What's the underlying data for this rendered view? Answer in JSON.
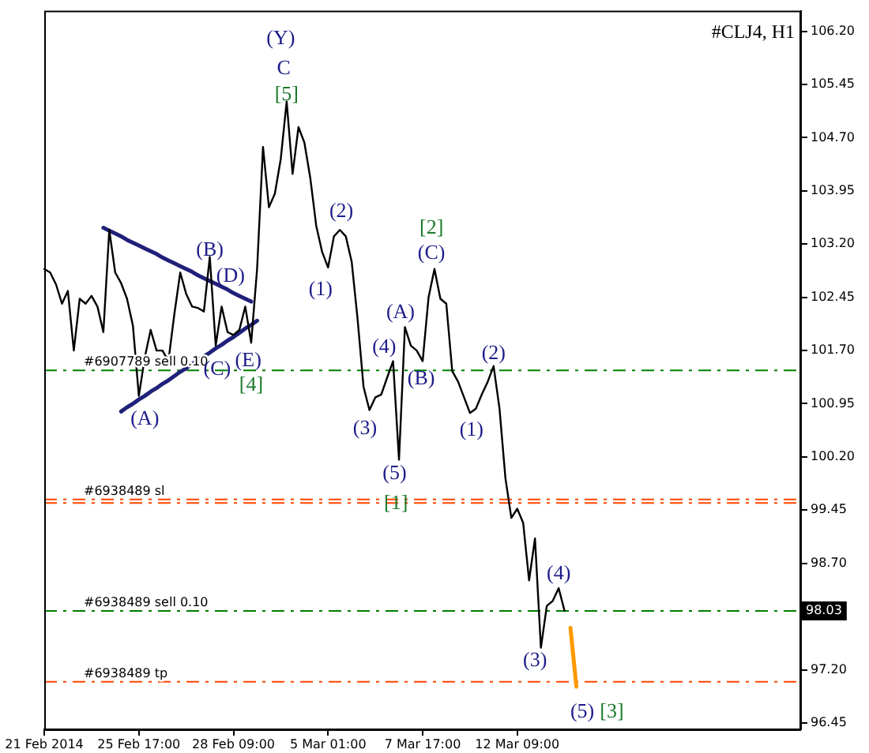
{
  "chart_data": {
    "type": "line",
    "title": "#CLJ4, H1",
    "categories": [
      "21 Feb 2014",
      null,
      null,
      null,
      null,
      null,
      null,
      null,
      null,
      null,
      null,
      null,
      null,
      null,
      null,
      null,
      "25 Feb 17:00",
      null,
      null,
      null,
      null,
      null,
      null,
      null,
      null,
      null,
      null,
      null,
      null,
      null,
      null,
      null,
      "28 Feb 09:00",
      null,
      null,
      null,
      null,
      null,
      null,
      null,
      null,
      null,
      null,
      null,
      null,
      null,
      null,
      null,
      "5 Mar 01:00",
      null,
      null,
      null,
      null,
      null,
      null,
      null,
      null,
      null,
      null,
      null,
      null,
      null,
      null,
      null,
      "7 Mar 17:00",
      null,
      null,
      null,
      null,
      null,
      null,
      null,
      null,
      null,
      null,
      null,
      null,
      null,
      null,
      null,
      "12 Mar 09:00",
      null,
      null,
      null,
      null,
      null,
      null,
      null,
      null,
      null,
      null,
      null,
      null,
      null,
      null,
      null,
      null,
      null,
      null,
      null,
      null,
      null,
      null,
      null,
      null,
      null,
      null,
      null,
      null,
      null,
      null,
      null,
      null,
      null,
      null,
      null,
      null,
      null,
      null,
      null,
      null,
      null,
      null,
      null,
      null,
      null,
      null,
      null,
      null
    ],
    "series": [
      {
        "color": "#000000",
        "values": [
          102.85,
          102.8,
          102.63,
          102.36,
          102.54,
          101.7,
          102.43,
          102.36,
          102.47,
          102.32,
          101.96,
          103.4,
          102.8,
          102.65,
          102.43,
          102.05,
          101.06,
          101.6,
          101.99,
          101.7,
          101.7,
          101.55,
          102.21,
          102.8,
          102.5,
          102.32,
          102.3,
          102.25,
          103.02,
          101.77,
          102.32,
          101.96,
          101.92,
          101.99,
          102.32,
          101.81,
          102.85,
          104.57,
          103.72,
          103.91,
          104.4,
          105.21,
          104.19,
          104.85,
          104.63,
          104.13,
          103.46,
          103.09,
          102.87,
          103.31,
          103.4,
          103.31,
          102.95,
          102.14,
          101.19,
          100.86,
          101.04,
          101.08,
          101.32,
          101.55,
          100.16,
          102.03,
          101.77,
          101.7,
          101.55,
          102.45,
          102.85,
          102.43,
          102.36,
          101.41,
          101.26,
          101.04,
          100.82,
          100.88,
          101.08,
          101.26,
          101.48,
          100.88,
          99.9,
          99.34,
          99.47,
          99.27,
          98.46,
          99.05,
          97.51,
          98.1,
          98.17,
          98.35,
          98.03,
          null,
          null,
          null,
          null,
          null,
          null,
          null,
          null,
          null,
          null,
          null,
          null,
          null,
          null,
          null,
          null,
          null,
          null,
          null,
          null,
          null,
          null,
          null,
          null,
          null,
          null,
          null,
          null,
          null,
          null,
          null,
          null,
          null,
          null,
          null,
          null,
          null,
          null,
          null,
          null
        ]
      },
      {
        "type": "line",
        "color": "#20207a",
        "values": [
          null,
          null,
          null,
          null,
          null,
          null,
          null,
          null,
          null,
          null,
          103.43,
          103.39,
          103.35,
          103.31,
          103.26,
          103.22,
          103.18,
          103.14,
          103.1,
          103.06,
          103.01,
          102.97,
          102.93,
          102.89,
          102.85,
          102.81,
          102.76,
          102.72,
          102.68,
          102.64,
          102.6,
          102.56,
          102.51,
          102.47,
          102.43,
          102.39,
          null,
          null,
          null,
          null,
          null,
          null,
          null,
          null,
          null,
          null,
          null,
          null,
          null,
          null,
          null,
          null,
          null,
          null,
          null,
          null,
          null,
          null,
          null,
          null,
          null,
          null,
          null,
          null,
          null,
          null,
          null,
          null,
          null,
          null,
          null,
          null,
          null,
          null,
          null,
          null,
          null,
          null,
          null,
          null,
          null,
          null,
          null,
          null,
          null,
          null,
          null,
          null,
          null,
          null,
          null,
          null,
          null,
          null,
          null,
          null,
          null,
          null,
          null,
          null,
          null,
          null,
          null,
          null,
          null,
          null,
          null,
          null,
          null,
          null,
          null,
          null,
          null,
          null,
          null,
          null,
          null,
          null,
          null,
          null,
          null,
          null,
          null,
          null,
          null,
          null,
          null,
          null,
          null
        ]
      },
      {
        "type": "line",
        "color": "#20207a",
        "values": [
          null,
          null,
          null,
          null,
          null,
          null,
          null,
          null,
          null,
          null,
          null,
          null,
          null,
          100.84,
          100.9,
          100.95,
          101.01,
          101.06,
          101.12,
          101.17,
          101.23,
          101.28,
          101.34,
          101.4,
          101.45,
          101.51,
          101.56,
          101.62,
          101.67,
          101.73,
          101.78,
          101.84,
          101.89,
          101.95,
          102.01,
          102.06,
          102.12,
          null,
          null,
          null,
          null,
          null,
          null,
          null,
          null,
          null,
          null,
          null,
          null,
          null,
          null,
          null,
          null,
          null,
          null,
          null,
          null,
          null,
          null,
          null,
          null,
          null,
          null,
          null,
          null,
          null,
          null,
          null,
          null,
          null,
          null,
          null,
          null,
          null,
          null,
          null,
          null,
          null,
          null,
          null,
          null,
          null,
          null,
          null,
          null,
          null,
          null,
          null,
          null,
          null,
          null,
          null,
          null,
          null,
          null,
          null,
          null,
          null,
          null,
          null,
          null,
          null,
          null,
          null,
          null,
          null,
          null,
          null,
          null,
          null,
          null,
          null,
          null,
          null,
          null,
          null,
          null,
          null,
          null,
          null,
          null,
          null,
          null,
          null,
          null,
          null,
          null,
          null,
          null
        ]
      },
      {
        "type": "line",
        "color": "#ff9900",
        "values": [
          null,
          null,
          null,
          null,
          null,
          null,
          null,
          null,
          null,
          null,
          null,
          null,
          null,
          null,
          null,
          null,
          null,
          null,
          null,
          null,
          null,
          null,
          null,
          null,
          null,
          null,
          null,
          null,
          null,
          null,
          null,
          null,
          null,
          null,
          null,
          null,
          null,
          null,
          null,
          null,
          null,
          null,
          null,
          null,
          null,
          null,
          null,
          null,
          null,
          null,
          null,
          null,
          null,
          null,
          null,
          null,
          null,
          null,
          null,
          null,
          null,
          null,
          null,
          null,
          null,
          null,
          null,
          null,
          null,
          null,
          null,
          null,
          null,
          null,
          null,
          null,
          null,
          null,
          null,
          null,
          null,
          null,
          null,
          null,
          null,
          null,
          null,
          null,
          null,
          97.79,
          96.96,
          null,
          null,
          null,
          null,
          null,
          null,
          null,
          null,
          null,
          null,
          null,
          null,
          null,
          null,
          null,
          null,
          null,
          null,
          null,
          null,
          null,
          null,
          null,
          null,
          null,
          null,
          null,
          null,
          null,
          null,
          null,
          null,
          null,
          null,
          null,
          null,
          null,
          null
        ]
      }
    ],
    "ylim": [
      96.36,
      106.49
    ],
    "yticks": [
      96.45,
      {
        "value": 97.2,
        "label": "97.20"
      },
      {
        "value": 97.95,
        "label": null
      },
      {
        "value": 98.7,
        "label": "98.70"
      },
      99.45,
      {
        "value": 100.2,
        "label": "100.20"
      },
      100.95,
      {
        "value": 101.7,
        "label": "101.70"
      },
      102.45,
      {
        "value": 103.2,
        "label": "103.20"
      },
      103.95,
      {
        "value": 104.7,
        "label": "104.70"
      },
      105.45,
      {
        "value": 106.2,
        "label": "106.20"
      }
    ],
    "ref_lines": [
      {
        "axis": "y",
        "value": 101.42,
        "label": "#6907789 sell 0.10",
        "color": "#008000",
        "line_style": "dashed"
      },
      {
        "axis": "y",
        "value": 99.6,
        "label": "#6938489 sl",
        "color": "#ff4500",
        "line_style": "dashed"
      },
      {
        "axis": "y",
        "value": 99.55,
        "color": "#ff4500",
        "line_style": "dashed"
      },
      {
        "axis": "y",
        "value": 98.03,
        "label": "#6938489 sell 0.10",
        "color": "#008000",
        "line_style": "dashed"
      },
      {
        "axis": "y",
        "value": 97.03,
        "label": "#6938489 tp",
        "color": "#ff4500",
        "line_style": "dashed"
      }
    ],
    "annotations": [
      "(Y)",
      "C",
      "[5]",
      "(2)",
      "(1)",
      "[2]",
      "(C)",
      "(A)",
      "(4)",
      "(B)",
      "(3)",
      "(5)",
      "[1]",
      "(2)",
      "(1)",
      "(B)",
      "(D)",
      "(C)",
      "(E)",
      "[4]",
      "(A)",
      "(4)",
      "(3)",
      "(5)",
      "[3]",
      {
        "text": "98.03",
        "y": 98.03
      }
    ],
    "marker": "none"
  }
}
